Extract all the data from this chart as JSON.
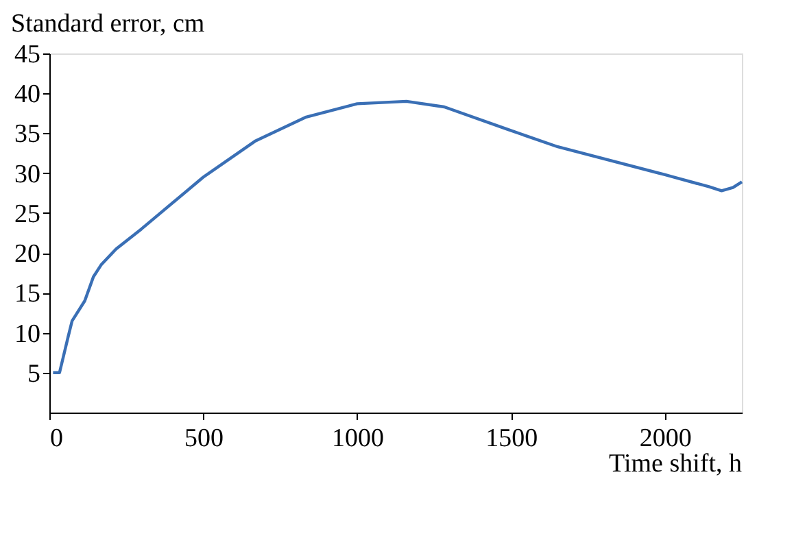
{
  "chart_data": {
    "type": "line",
    "xlabel": "Time shift, h",
    "ylabel": "Standard error, cm",
    "x": [
      12,
      33,
      61,
      74,
      115,
      143,
      168,
      217,
      299,
      500,
      668,
      832,
      1000,
      1160,
      1283,
      1488,
      1652,
      2000,
      2143,
      2184,
      2221,
      2250
    ],
    "series": [
      {
        "color": "#3a6fb5",
        "values": [
          5,
          5,
          9.5,
          11.5,
          14,
          17,
          18.5,
          20.5,
          23,
          29.5,
          34,
          37,
          38.7,
          39,
          38.3,
          35.5,
          33.3,
          29.8,
          28.3,
          27.8,
          28.2,
          28.9
        ]
      }
    ],
    "xlim": [
      0,
      2250
    ],
    "ylim": [
      0,
      45
    ],
    "xticks": [
      0,
      500,
      1000,
      1500,
      2000
    ],
    "yticks": [
      5,
      10,
      15,
      20,
      25,
      30,
      35,
      40,
      45
    ],
    "grid": false,
    "marker": "none",
    "line_style": "solid"
  }
}
